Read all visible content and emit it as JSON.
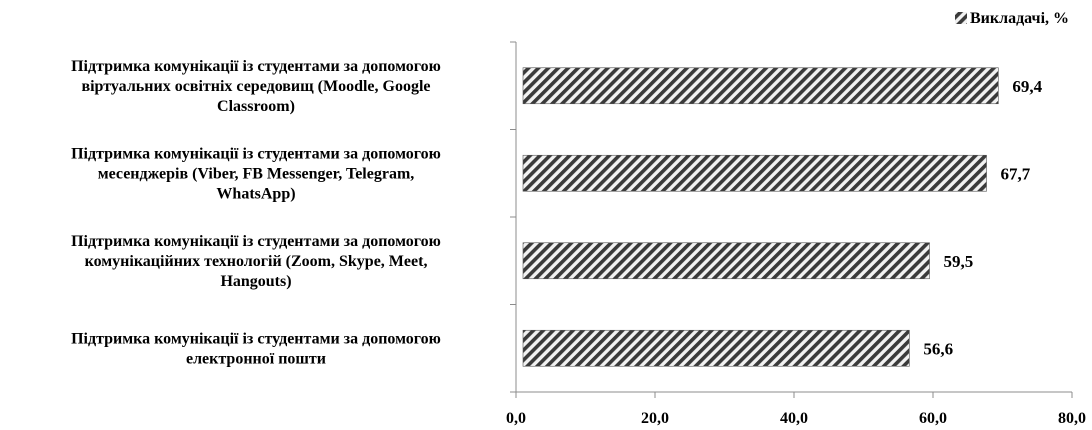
{
  "chart_data": {
    "type": "bar",
    "orientation": "horizontal",
    "title": "",
    "xlabel": "",
    "ylabel": "",
    "categories": [
      [
        "Підтримка комунікації із студентами за допомогою",
        "віртуальних освітніх середовищ (Moodle, Google",
        "Classroom)"
      ],
      [
        "Підтримка комунікації із студентами за допомогою",
        "месенджерів (Viber, FB Messenger, Telegram,",
        "WhatsApp)"
      ],
      [
        "Підтримка комунікації із студентами за допомогою",
        "комунікаційних технологій (Zoom, Skype, Meet,",
        "Hangouts)"
      ],
      [
        "Підтримка комунікації із студентами за допомогою",
        "електронної пошти"
      ]
    ],
    "series": [
      {
        "name": "Викладачі, %",
        "values": [
          69.4,
          67.7,
          59.5,
          56.6
        ],
        "data_labels": [
          "69,4",
          "67,7",
          "59,5",
          "56,6"
        ],
        "fill": "diagonal-hatch",
        "color": "#3a3a3a"
      }
    ],
    "xlim": [
      0,
      80
    ],
    "xticks": [
      0,
      20,
      40,
      60,
      80
    ],
    "xtick_labels": [
      "0,0",
      "20,0",
      "40,0",
      "60,0",
      "80,0"
    ],
    "grid": false,
    "legend_position": "top-right",
    "axis_color": "#8c8c8c"
  }
}
